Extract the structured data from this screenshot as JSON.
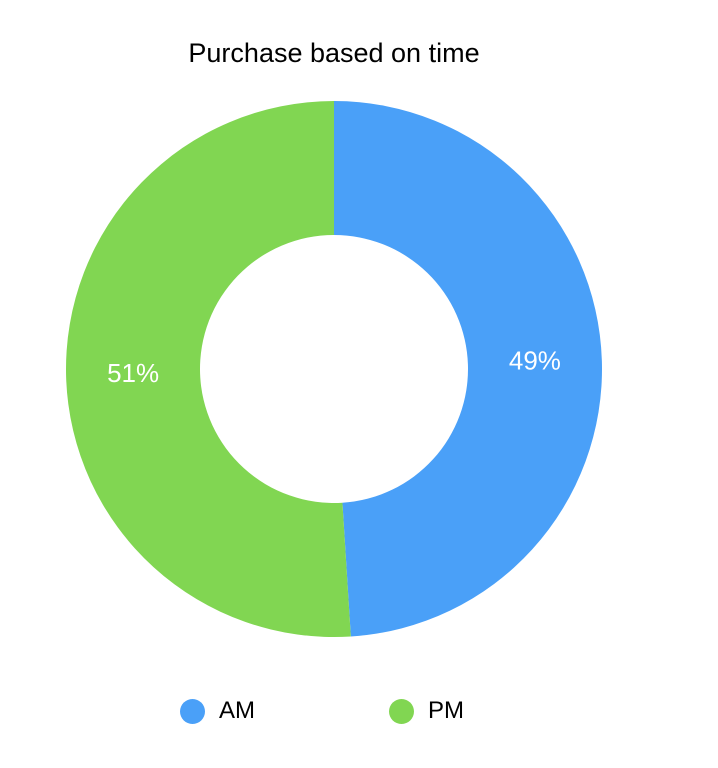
{
  "chart_data": {
    "type": "pie",
    "title": "Purchase based on time",
    "labels": [
      "AM",
      "PM"
    ],
    "values": [
      49,
      51
    ],
    "slice_labels": [
      "49%",
      "51%"
    ],
    "colors": [
      "#4aa0f8",
      "#81d652"
    ],
    "donut": true,
    "legend_position": "bottom"
  },
  "legend": {
    "items": [
      {
        "label": "AM",
        "color": "#4aa0f8"
      },
      {
        "label": "PM",
        "color": "#81d652"
      }
    ]
  }
}
